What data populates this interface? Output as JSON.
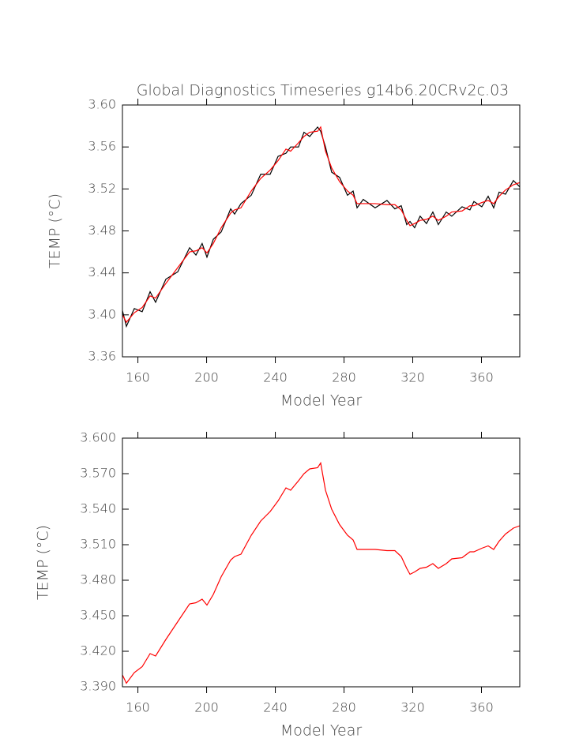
{
  "chart_data": [
    {
      "type": "line",
      "title": "Global Diagnostics Timeseries g14b6.20CRv2c.03",
      "xlabel": "Model Year",
      "ylabel": "TEMP (°C)",
      "x": [
        151,
        153.3,
        157.9,
        162.5,
        167.1,
        170.3,
        176.3,
        183.2,
        190.1,
        193.8,
        197.4,
        200.2,
        203.9,
        208.5,
        214.0,
        216.3,
        220.0,
        226.0,
        231.5,
        237.0,
        241.6,
        246.2,
        248.9,
        253.5,
        256.7,
        260.0,
        264.6,
        266.4,
        269.2,
        272.8,
        277.4,
        282.0,
        285.3,
        287.6,
        291.2,
        298.1,
        305.0,
        309.6,
        313.3,
        316.5,
        318.4,
        321.1,
        324.3,
        328.0,
        331.7,
        334.9,
        339.5,
        342.7,
        348.7,
        353.3,
        355.6,
        360.2,
        363.9,
        367.1,
        370.3,
        374.0,
        378.6,
        382.3
      ],
      "series": [
        {
          "color": "#000000",
          "values": [
            3.404,
            3.389,
            3.406,
            3.403,
            3.422,
            3.412,
            3.434,
            3.441,
            3.464,
            3.457,
            3.468,
            3.455,
            3.472,
            3.479,
            3.501,
            3.496,
            3.506,
            3.514,
            3.534,
            3.534,
            3.551,
            3.554,
            3.56,
            3.56,
            3.574,
            3.57,
            3.579,
            3.575,
            3.56,
            3.536,
            3.531,
            3.514,
            3.518,
            3.502,
            3.51,
            3.502,
            3.509,
            3.501,
            3.504,
            3.486,
            3.489,
            3.483,
            3.494,
            3.487,
            3.498,
            3.486,
            3.498,
            3.494,
            3.503,
            3.5,
            3.508,
            3.503,
            3.513,
            3.502,
            3.517,
            3.515,
            3.528,
            3.522
          ]
        },
        {
          "color": "#ff0000",
          "values": [
            3.4,
            3.393,
            3.402,
            3.407,
            3.418,
            3.416,
            3.43,
            3.445,
            3.46,
            3.461,
            3.464,
            3.459,
            3.468,
            3.483,
            3.497,
            3.5,
            3.502,
            3.518,
            3.53,
            3.538,
            3.547,
            3.558,
            3.556,
            3.564,
            3.57,
            3.574,
            3.575,
            3.579,
            3.556,
            3.54,
            3.527,
            3.518,
            3.514,
            3.506,
            3.506,
            3.506,
            3.505,
            3.505,
            3.5,
            3.49,
            3.485,
            3.487,
            3.49,
            3.491,
            3.494,
            3.49,
            3.494,
            3.498,
            3.499,
            3.504,
            3.504,
            3.507,
            3.509,
            3.506,
            3.513,
            3.519,
            3.524,
            3.526
          ]
        }
      ],
      "xlim": [
        151,
        382.3
      ],
      "xticks": [
        160,
        200,
        240,
        280,
        320,
        360
      ],
      "ylim": [
        3.36,
        3.6
      ],
      "yticks": [
        3.36,
        {
          "value": 3.4,
          "label": "3.40"
        },
        3.44,
        3.48,
        3.52,
        3.56,
        {
          "value": 3.6,
          "label": "3.60"
        }
      ]
    },
    {
      "type": "line",
      "xlabel": "Model Year",
      "ylabel": "TEMP (°C)",
      "x": [
        151,
        153.3,
        157.9,
        162.5,
        167.1,
        170.3,
        176.3,
        183.2,
        190.1,
        193.8,
        197.4,
        200.2,
        203.9,
        208.5,
        214.0,
        216.3,
        220.0,
        226.0,
        231.5,
        237.0,
        241.6,
        246.2,
        248.9,
        253.5,
        256.7,
        260.0,
        264.6,
        266.4,
        269.2,
        272.8,
        277.4,
        282.0,
        285.3,
        287.6,
        291.2,
        298.1,
        305.0,
        309.6,
        313.3,
        316.5,
        318.4,
        321.1,
        324.3,
        328.0,
        331.7,
        334.9,
        339.5,
        342.7,
        348.7,
        353.3,
        355.6,
        360.2,
        363.9,
        367.1,
        370.3,
        374.0,
        378.6,
        382.3
      ],
      "series": [
        {
          "color": "#ff0000",
          "values": [
            3.4,
            3.393,
            3.402,
            3.407,
            3.418,
            3.416,
            3.43,
            3.445,
            3.46,
            3.461,
            3.464,
            3.459,
            3.468,
            3.483,
            3.497,
            3.5,
            3.502,
            3.518,
            3.53,
            3.538,
            3.547,
            3.558,
            3.556,
            3.564,
            3.57,
            3.574,
            3.575,
            3.579,
            3.556,
            3.54,
            3.527,
            3.518,
            3.514,
            3.506,
            3.506,
            3.506,
            3.505,
            3.505,
            3.5,
            3.49,
            3.485,
            3.487,
            3.49,
            3.491,
            3.494,
            3.49,
            3.494,
            3.498,
            3.499,
            3.504,
            3.504,
            3.507,
            3.509,
            3.506,
            3.513,
            3.519,
            3.524,
            3.526
          ]
        }
      ],
      "xlim": [
        151,
        382.3
      ],
      "xticks": [
        160,
        200,
        240,
        280,
        320,
        360
      ],
      "ylim": [
        3.39,
        3.6
      ],
      "yticks": [
        {
          "value": 3.39,
          "label": "3.390"
        },
        {
          "value": 3.42,
          "label": "3.420"
        },
        {
          "value": 3.45,
          "label": "3.450"
        },
        {
          "value": 3.48,
          "label": "3.480"
        },
        {
          "value": 3.51,
          "label": "3.510"
        },
        {
          "value": 3.54,
          "label": "3.540"
        },
        {
          "value": 3.57,
          "label": "3.570"
        },
        {
          "value": 3.6,
          "label": "3.600"
        }
      ]
    }
  ]
}
